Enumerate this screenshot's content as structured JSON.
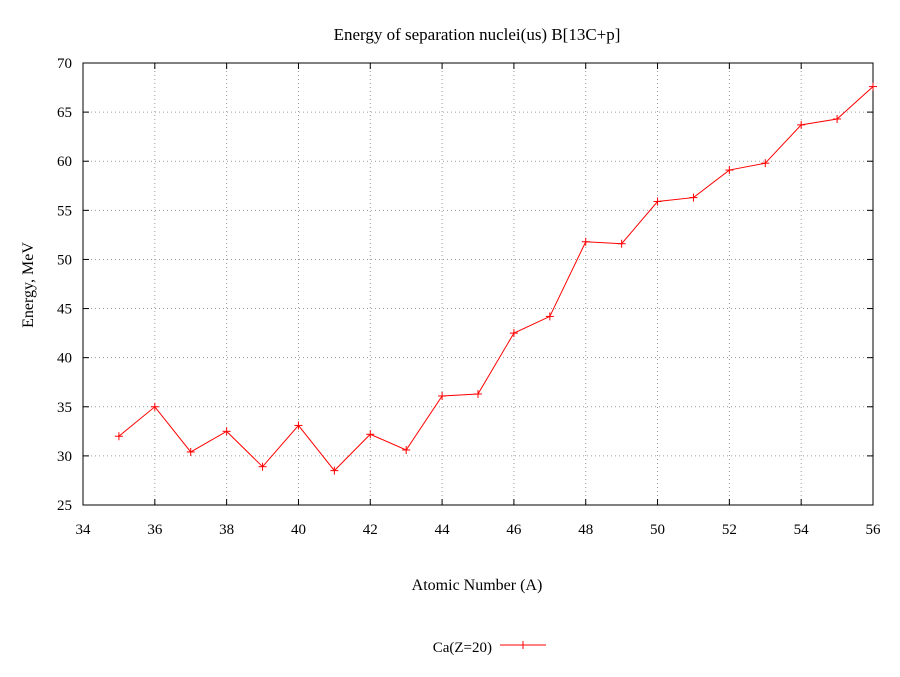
{
  "chart_data": {
    "type": "line",
    "title": "Energy of separation nuclei(us) B[13C+p]",
    "xlabel": "Atomic Number (A)",
    "ylabel": "Energy, MeV",
    "xlim": [
      34,
      56
    ],
    "ylim": [
      25,
      70
    ],
    "xticks": [
      34,
      36,
      38,
      40,
      42,
      44,
      46,
      48,
      50,
      52,
      54,
      56
    ],
    "yticks": [
      25,
      30,
      35,
      40,
      45,
      50,
      55,
      60,
      65,
      70
    ],
    "grid": true,
    "legend_position": "bottom-center",
    "series": [
      {
        "name": "Ca(Z=20)",
        "color": "#ff0000",
        "marker": "plus",
        "x": [
          35,
          36,
          37,
          38,
          39,
          40,
          41,
          42,
          43,
          44,
          45,
          46,
          47,
          48,
          49,
          50,
          51,
          52,
          53,
          54,
          55,
          56
        ],
        "y": [
          32.0,
          35.0,
          30.4,
          32.5,
          28.9,
          33.1,
          28.5,
          32.2,
          30.6,
          36.1,
          36.3,
          42.5,
          44.2,
          51.8,
          51.6,
          55.9,
          56.3,
          59.1,
          59.8,
          63.7,
          64.3,
          67.6
        ]
      }
    ]
  }
}
